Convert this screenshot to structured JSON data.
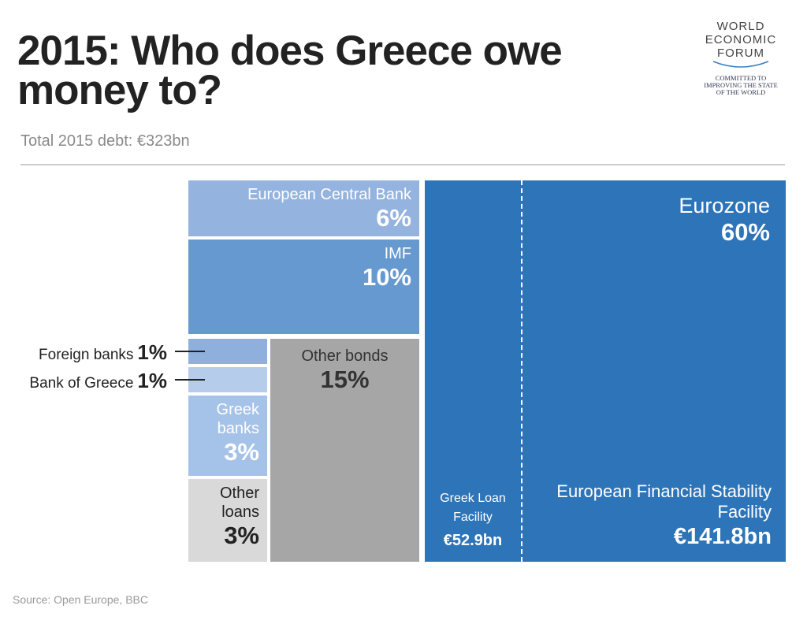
{
  "title": "2015: Who does Greece owe money to?",
  "subtitle": "Total 2015 debt: €323bn",
  "source": "Source: Open Europe, BBC",
  "logo": {
    "name_lines": [
      "WORLD",
      "ECONOMIC",
      "FORUM"
    ],
    "tagline": [
      "COMMITTED TO",
      "IMPROVING THE STATE",
      "OF THE WORLD"
    ]
  },
  "chart_data": {
    "type": "treemap",
    "categories": [
      "European Central Bank",
      "IMF",
      "Foreign banks",
      "Bank of Greece",
      "Greek banks",
      "Other loans",
      "Other bonds",
      "Eurozone"
    ],
    "values": [
      6,
      10,
      1,
      1,
      3,
      3,
      15,
      60
    ],
    "value_labels": [
      "6%",
      "10%",
      "1%",
      "1%",
      "3%",
      "3%",
      "15%",
      "60%"
    ],
    "colors": [
      "#94b3de",
      "#6699cf",
      "#8fb0dc",
      "#b5cdea",
      "#a5c2e8",
      "#d9d9d9",
      "#a6a6a6",
      "#2e74b9"
    ],
    "eurozone_parts": {
      "categories": [
        "Greek Loan Facility",
        "European Financial Stability Facility"
      ],
      "values": [
        52.9,
        141.8
      ],
      "value_labels": [
        "€52.9bn",
        "€141.8bn"
      ]
    }
  }
}
